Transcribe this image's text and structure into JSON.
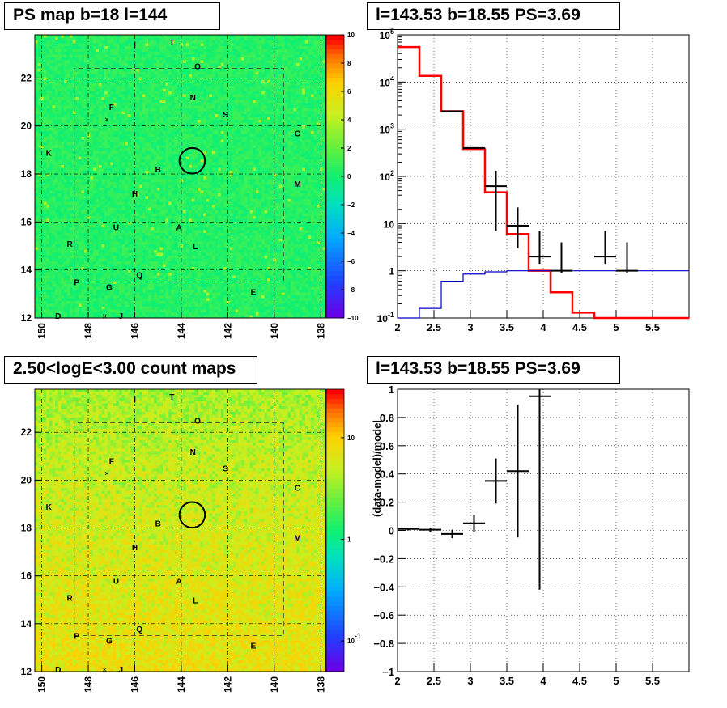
{
  "panels": {
    "tl_title": "PS map b=18 l=144",
    "tr_title": "l=143.53 b=18.55 PS=3.69",
    "bl_title": "2.50<logE<3.00 count maps",
    "br_title": "l=143.53 b=18.55 PS=3.69"
  },
  "chart_data": [
    {
      "type": "heatmap",
      "title": "PS map b=18 l=144",
      "x_ticks": [
        "150",
        "148",
        "146",
        "144",
        "142",
        "140",
        "138"
      ],
      "y_ticks": [
        "12",
        "14",
        "16",
        "18",
        "20",
        "22"
      ],
      "xlim": [
        150.3,
        137.8
      ],
      "ylim": [
        12,
        23.8
      ],
      "colorbar_ticks": [
        "10",
        "8",
        "6",
        "4",
        "2",
        "0",
        "−2",
        "−4",
        "−6",
        "−8",
        "−10"
      ],
      "colorbar_range": [
        -10,
        10
      ],
      "dominant_value": 0.5,
      "circle_center": {
        "l": 143.53,
        "b": 18.55
      },
      "circle_radius_deg": 0.5,
      "labels": [
        {
          "t": "I",
          "l": 146.0,
          "b": 23.4
        },
        {
          "t": "T",
          "l": 144.4,
          "b": 23.5
        },
        {
          "t": "O",
          "l": 143.3,
          "b": 22.5
        },
        {
          "t": "N",
          "l": 143.5,
          "b": 21.2
        },
        {
          "t": "F",
          "l": 147.0,
          "b": 20.8
        },
        {
          "t": "S",
          "l": 142.1,
          "b": 20.5
        },
        {
          "t": "C",
          "l": 139.0,
          "b": 19.7
        },
        {
          "t": "K",
          "l": 149.7,
          "b": 18.9
        },
        {
          "t": "B",
          "l": 145.0,
          "b": 18.2
        },
        {
          "t": "M",
          "l": 139.0,
          "b": 17.6
        },
        {
          "t": "H",
          "l": 146.0,
          "b": 17.2
        },
        {
          "t": "U",
          "l": 146.8,
          "b": 15.8
        },
        {
          "t": "A",
          "l": 144.1,
          "b": 15.8
        },
        {
          "t": "R",
          "l": 148.8,
          "b": 15.1
        },
        {
          "t": "L",
          "l": 143.4,
          "b": 15.0
        },
        {
          "t": "Q",
          "l": 145.8,
          "b": 13.8
        },
        {
          "t": "P",
          "l": 148.5,
          "b": 13.5
        },
        {
          "t": "G",
          "l": 147.1,
          "b": 13.3
        },
        {
          "t": "E",
          "l": 140.9,
          "b": 13.1
        },
        {
          "t": "D",
          "l": 149.3,
          "b": 12.1
        },
        {
          "t": "J",
          "l": 146.6,
          "b": 12.1
        }
      ]
    },
    {
      "type": "line",
      "title": "l=143.53 b=18.55 PS=3.69",
      "xlim": [
        2,
        6
      ],
      "ylim": [
        0.1,
        100000
      ],
      "y_scale": "log",
      "grid": true,
      "x_ticks": [
        "2",
        "2.5",
        "3",
        "3.5",
        "4",
        "4.5",
        "5",
        "5.5"
      ],
      "y_ticks": [
        "10^-1",
        "1",
        "10",
        "10^2",
        "10^3",
        "10^4",
        "10^5"
      ],
      "bin_edges": [
        2.0,
        2.3,
        2.6,
        2.9,
        3.2,
        3.5,
        3.8,
        4.1,
        4.4,
        4.7,
        5.0,
        5.3,
        6.0
      ],
      "series": [
        {
          "color": "#ff0000",
          "values": [
            55000,
            13500,
            2400,
            380,
            46,
            6,
            1,
            0.35,
            0.13,
            0.1,
            0.1,
            0.1
          ]
        },
        {
          "color": "#0000cc",
          "values": [
            0.1,
            0.16,
            0.6,
            0.85,
            0.95,
            1.0,
            1.0,
            1.0,
            1.0,
            1.0,
            1.0,
            1.0
          ]
        },
        {
          "color": "#000000",
          "points": [
            {
              "x": 2.75,
              "y": 2400
            },
            {
              "x": 3.05,
              "y": 400
            },
            {
              "x": 3.35,
              "y": 62,
              "xerr": 0.15,
              "yerr": [
                55,
                70
              ]
            },
            {
              "x": 3.65,
              "y": 9,
              "xerr": 0.15,
              "yerr": [
                6,
                13
              ]
            },
            {
              "x": 3.95,
              "y": 2,
              "xerr": 0.15,
              "yerr": [
                0.6,
                5
              ]
            },
            {
              "x": 4.25,
              "y": 1,
              "xerr": 0.15,
              "yerr": [
                0.1,
                3
              ]
            },
            {
              "x": 4.85,
              "y": 2,
              "xerr": 0.15,
              "yerr": [
                0.6,
                5
              ]
            },
            {
              "x": 5.15,
              "y": 1,
              "xerr": 0.15,
              "yerr": [
                0.1,
                3
              ]
            }
          ]
        }
      ]
    },
    {
      "type": "heatmap",
      "title": "2.50<logE<3.00 count maps",
      "x_ticks": [
        "150",
        "148",
        "146",
        "144",
        "142",
        "140",
        "138"
      ],
      "y_ticks": [
        "12",
        "14",
        "16",
        "18",
        "20",
        "22"
      ],
      "colorbar_ticks": [
        "10",
        "1",
        "10^-1"
      ],
      "colorbar_scale": "log",
      "colorbar_range": [
        0.05,
        30
      ],
      "mean_counts_top": 4,
      "mean_counts_bottom": 8
    },
    {
      "type": "scatter",
      "title": "l=143.53 b=18.55 PS=3.69",
      "ylabel": "(data-model)/model",
      "xlim": [
        2,
        6
      ],
      "ylim": [
        -1,
        1
      ],
      "grid": true,
      "x_ticks": [
        "2",
        "2.5",
        "3",
        "3.5",
        "4",
        "4.5",
        "5",
        "5.5"
      ],
      "y_ticks": [
        "1",
        "0.8",
        "0.6",
        "0.4",
        "0.2",
        "0",
        "−0.2",
        "−0.4",
        "−0.6",
        "−0.8",
        "−1"
      ],
      "points": [
        {
          "x": 2.15,
          "y": 0.01,
          "xerr": 0.15,
          "yerr": [
            0.01,
            0.01
          ]
        },
        {
          "x": 2.45,
          "y": 0.005,
          "xerr": 0.15,
          "yerr": [
            0.015,
            0.015
          ]
        },
        {
          "x": 2.75,
          "y": -0.025,
          "xerr": 0.15,
          "yerr": [
            0.03,
            0.03
          ]
        },
        {
          "x": 3.05,
          "y": 0.05,
          "xerr": 0.15,
          "yerr": [
            0.06,
            0.06
          ]
        },
        {
          "x": 3.35,
          "y": 0.35,
          "xerr": 0.15,
          "yerr": [
            0.16,
            0.16
          ]
        },
        {
          "x": 3.65,
          "y": 0.42,
          "xerr": 0.15,
          "yerr": [
            0.47,
            0.47
          ]
        },
        {
          "x": 3.95,
          "y": 0.95,
          "xerr": 0.15,
          "yerr": [
            1.37,
            0.1
          ]
        }
      ]
    }
  ]
}
